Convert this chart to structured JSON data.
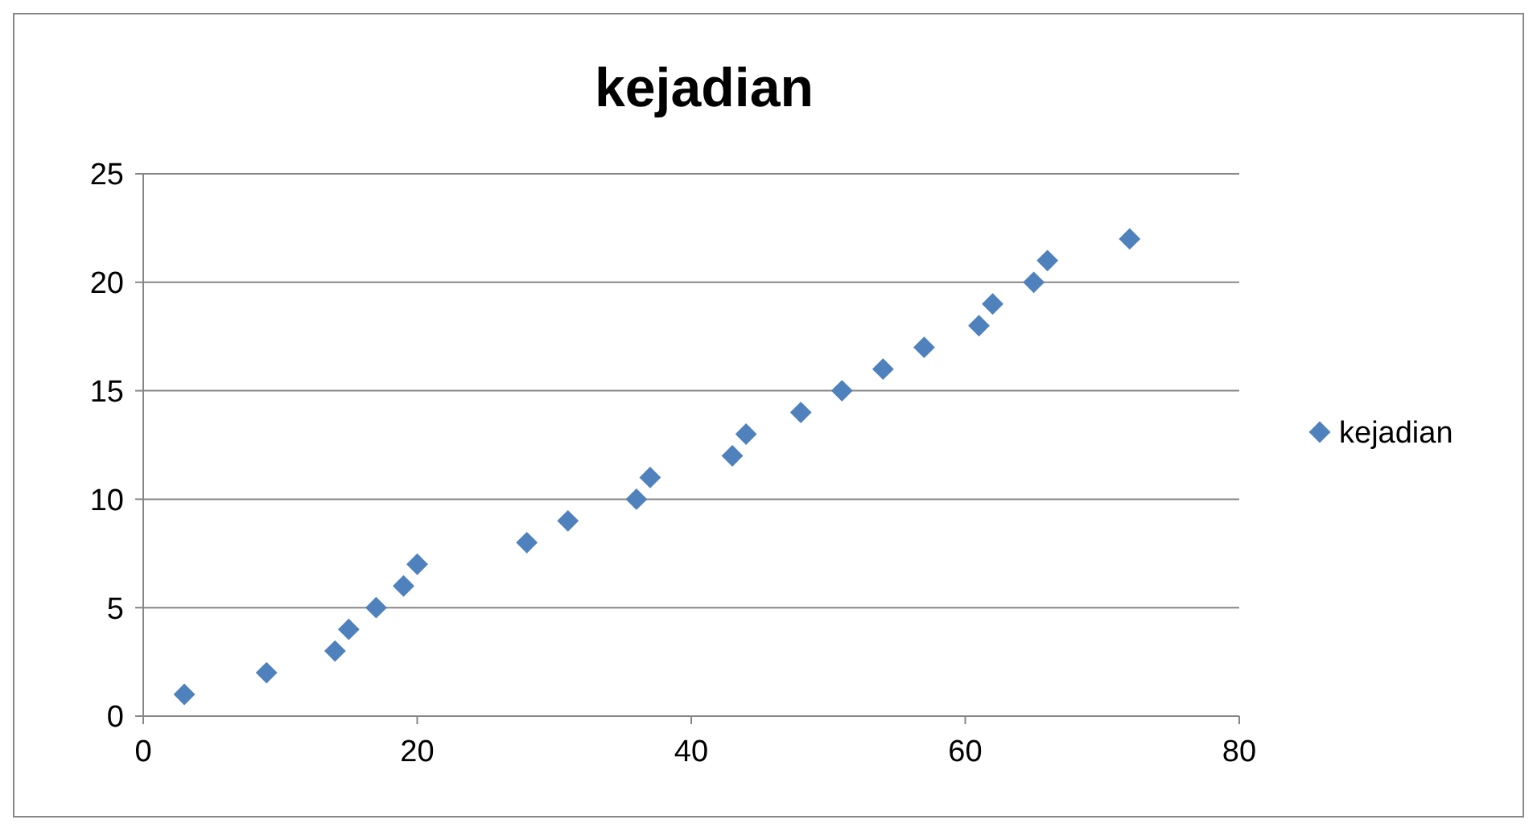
{
  "chart_data": {
    "type": "scatter",
    "title": "kejadian",
    "x": [
      3,
      9,
      14,
      15,
      17,
      19,
      20,
      28,
      31,
      36,
      37,
      43,
      44,
      48,
      51,
      54,
      57,
      61,
      62,
      65,
      66,
      72
    ],
    "series": [
      {
        "name": "kejadian",
        "color": "#4f81bd",
        "values": [
          1,
          2,
          3,
          4,
          5,
          6,
          7,
          8,
          9,
          10,
          11,
          12,
          13,
          14,
          15,
          16,
          17,
          18,
          19,
          20,
          21,
          22
        ]
      }
    ],
    "xlim": [
      0,
      80
    ],
    "xticks": [
      0,
      20,
      40,
      60,
      80
    ],
    "ylim": [
      0,
      25
    ],
    "yticks": [
      0,
      5,
      10,
      15,
      20,
      25
    ],
    "grid": "y",
    "legend": "right",
    "marker": "diamond"
  }
}
